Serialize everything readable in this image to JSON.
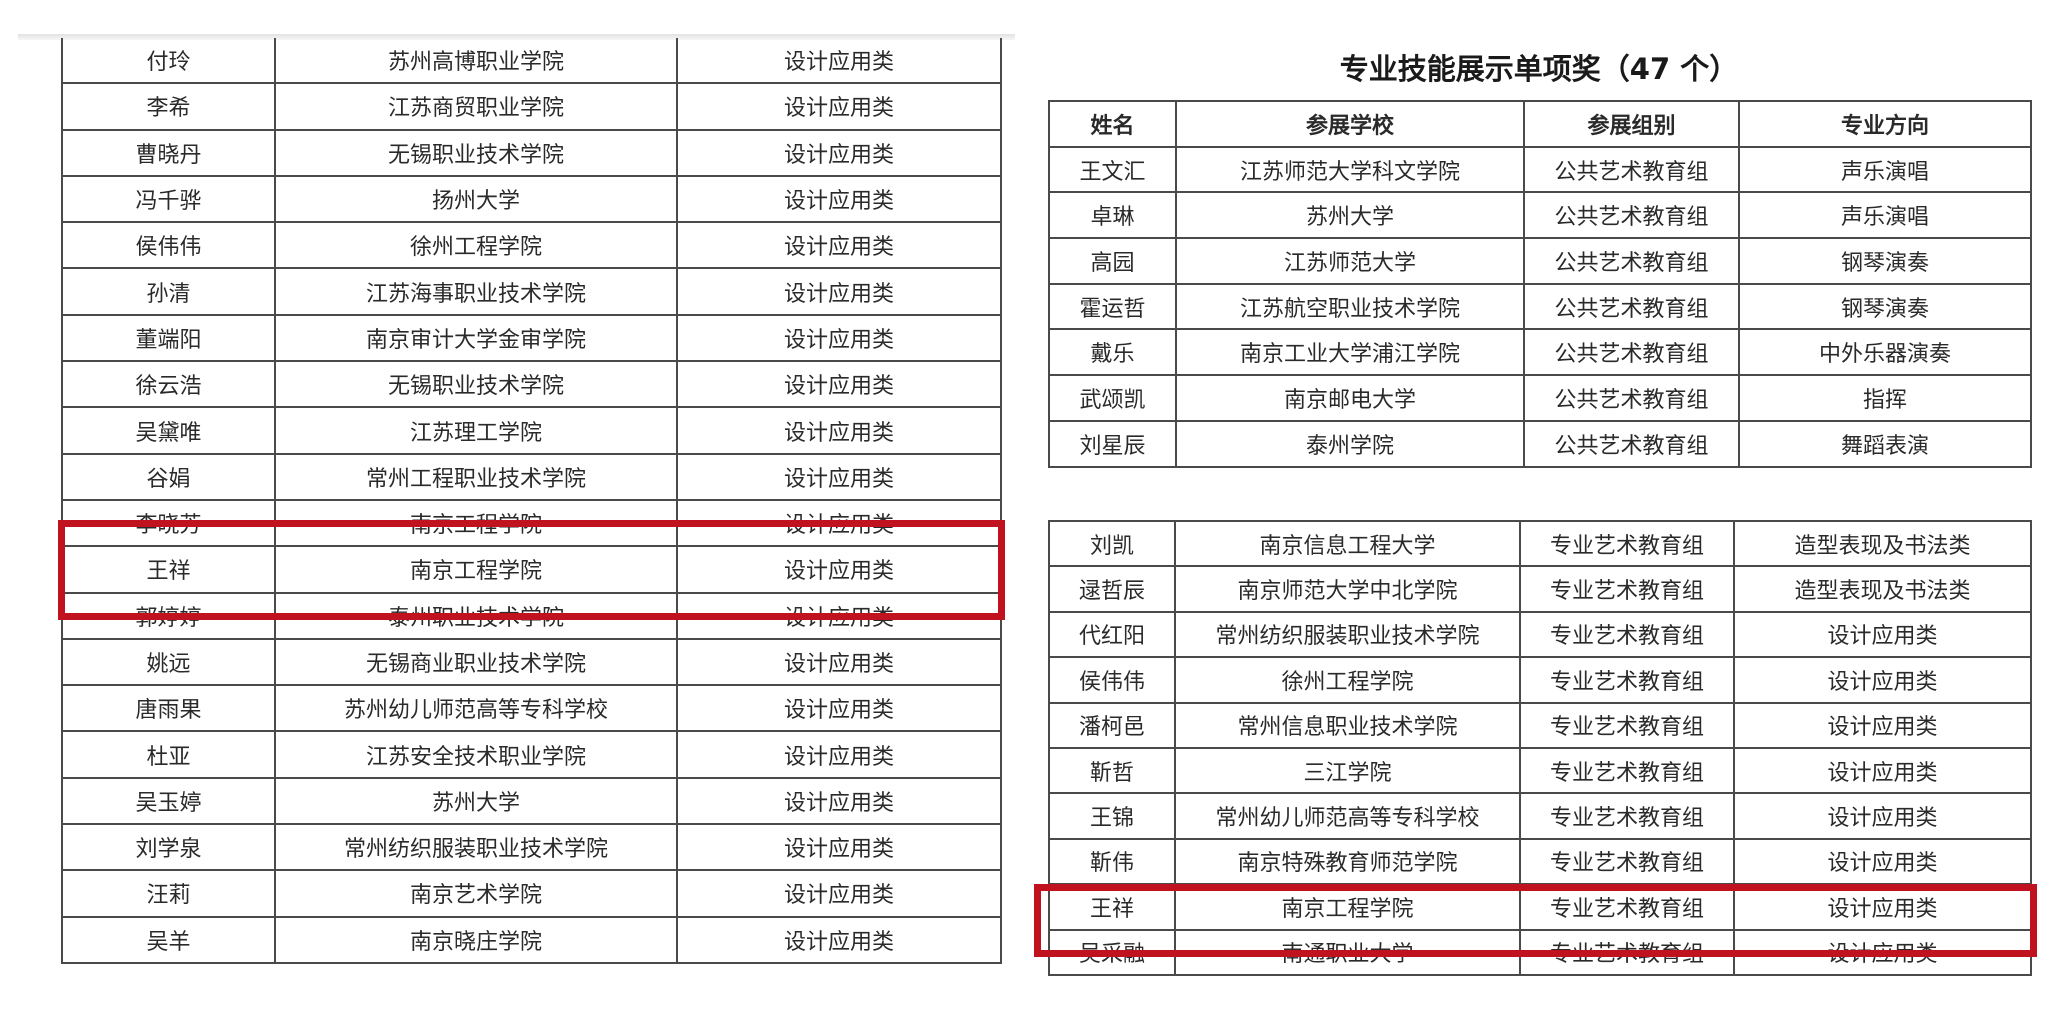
{
  "left_table": {
    "rows": [
      [
        "付玲",
        "苏州高博职业学院",
        "设计应用类"
      ],
      [
        "李希",
        "江苏商贸职业学院",
        "设计应用类"
      ],
      [
        "曹晓丹",
        "无锡职业技术学院",
        "设计应用类"
      ],
      [
        "冯千骅",
        "扬州大学",
        "设计应用类"
      ],
      [
        "侯伟伟",
        "徐州工程学院",
        "设计应用类"
      ],
      [
        "孙清",
        "江苏海事职业技术学院",
        "设计应用类"
      ],
      [
        "董端阳",
        "南京审计大学金审学院",
        "设计应用类"
      ],
      [
        "徐云浩",
        "无锡职业技术学院",
        "设计应用类"
      ],
      [
        "吴黛唯",
        "江苏理工学院",
        "设计应用类"
      ],
      [
        "谷娟",
        "常州工程职业技术学院",
        "设计应用类"
      ],
      [
        "李晓芳",
        "南京工程学院",
        "设计应用类"
      ],
      [
        "王祥",
        "南京工程学院",
        "设计应用类"
      ],
      [
        "郭婷婷",
        "泰州职业技术学院",
        "设计应用类"
      ],
      [
        "姚远",
        "无锡商业职业技术学院",
        "设计应用类"
      ],
      [
        "唐雨果",
        "苏州幼儿师范高等专科学校",
        "设计应用类"
      ],
      [
        "杜亚",
        "江苏安全技术职业学院",
        "设计应用类"
      ],
      [
        "吴玉婷",
        "苏州大学",
        "设计应用类"
      ],
      [
        "刘学泉",
        "常州纺织服装职业技术学院",
        "设计应用类"
      ],
      [
        "汪莉",
        "南京艺术学院",
        "设计应用类"
      ],
      [
        "吴羊",
        "南京晓庄学院",
        "设计应用类"
      ]
    ],
    "highlighted_rows": [
      10,
      11
    ]
  },
  "right": {
    "title": "专业技能展示单项奖（47 个）",
    "headers": [
      "姓名",
      "参展学校",
      "参展组别",
      "专业方向"
    ],
    "table1_rows": [
      [
        "王文汇",
        "江苏师范大学科文学院",
        "公共艺术教育组",
        "声乐演唱"
      ],
      [
        "卓琳",
        "苏州大学",
        "公共艺术教育组",
        "声乐演唱"
      ],
      [
        "高园",
        "江苏师范大学",
        "公共艺术教育组",
        "钢琴演奏"
      ],
      [
        "霍运哲",
        "江苏航空职业技术学院",
        "公共艺术教育组",
        "钢琴演奏"
      ],
      [
        "戴乐",
        "南京工业大学浦江学院",
        "公共艺术教育组",
        "中外乐器演奏"
      ],
      [
        "武颂凯",
        "南京邮电大学",
        "公共艺术教育组",
        "指挥"
      ],
      [
        "刘星辰",
        "泰州学院",
        "公共艺术教育组",
        "舞蹈表演"
      ]
    ],
    "table2_rows": [
      [
        "刘凯",
        "南京信息工程大学",
        "专业艺术教育组",
        "造型表现及书法类"
      ],
      [
        "逯哲辰",
        "南京师范大学中北学院",
        "专业艺术教育组",
        "造型表现及书法类"
      ],
      [
        "代红阳",
        "常州纺织服装职业技术学院",
        "专业艺术教育组",
        "设计应用类"
      ],
      [
        "侯伟伟",
        "徐州工程学院",
        "专业艺术教育组",
        "设计应用类"
      ],
      [
        "潘柯邑",
        "常州信息职业技术学院",
        "专业艺术教育组",
        "设计应用类"
      ],
      [
        "靳哲",
        "三江学院",
        "专业艺术教育组",
        "设计应用类"
      ],
      [
        "王锦",
        "常州幼儿师范高等专科学校",
        "专业艺术教育组",
        "设计应用类"
      ],
      [
        "靳伟",
        "南京特殊教育师范学院",
        "专业艺术教育组",
        "设计应用类"
      ],
      [
        "王祥",
        "南京工程学院",
        "专业艺术教育组",
        "设计应用类"
      ],
      [
        "吴采融",
        "南通职业大学",
        "专业艺术教育组",
        "设计应用类"
      ]
    ],
    "highlighted_rows": [
      8
    ]
  },
  "colors": {
    "highlight": "#c0121f",
    "grid": "#4a4a4a"
  }
}
